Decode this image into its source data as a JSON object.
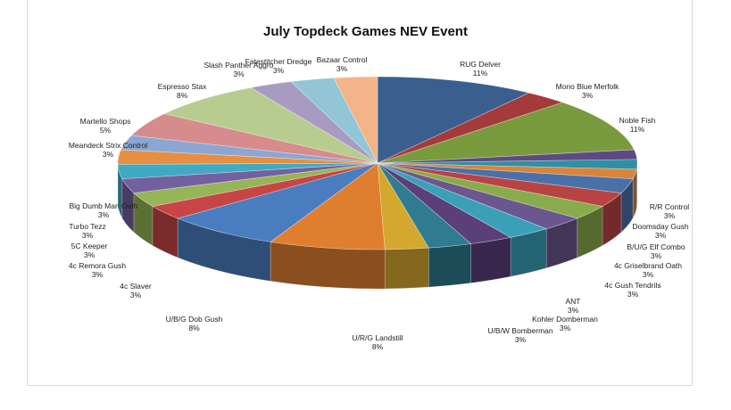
{
  "chart_data": {
    "type": "pie",
    "variant": "3d-exploded",
    "title": "July Topdeck Games NEV Event",
    "slices": [
      {
        "name": "RUG Delver",
        "percent_label": "11%",
        "value": 11,
        "color": "#3a5f8f"
      },
      {
        "name": "Mono Blue Merfolk",
        "percent_label": "3%",
        "value": 3,
        "color": "#a53a3a"
      },
      {
        "name": "Noble Fish",
        "percent_label": "11%",
        "value": 11,
        "color": "#7a9a3e"
      },
      {
        "name": "",
        "percent_label": "",
        "value": 2,
        "color": "#5e4a80"
      },
      {
        "name": "",
        "percent_label": "",
        "value": 2,
        "color": "#2f8fa5"
      },
      {
        "name": "",
        "percent_label": "",
        "value": 2,
        "color": "#d9843b"
      },
      {
        "name": "R/R Control",
        "percent_label": "3%",
        "value": 3,
        "color": "#4a70a8"
      },
      {
        "name": "Doomsday Gush",
        "percent_label": "3%",
        "value": 3,
        "color": "#b84343"
      },
      {
        "name": "B/U/G Elf Combo",
        "percent_label": "3%",
        "value": 3,
        "color": "#8aab4c"
      },
      {
        "name": "4c Griselbrand Oath",
        "percent_label": "3%",
        "value": 3,
        "color": "#6a5790"
      },
      {
        "name": "4c Gush Tendrils",
        "percent_label": "3%",
        "value": 3,
        "color": "#3aa0b8"
      },
      {
        "name": "ANT",
        "percent_label": "3%",
        "value": 3,
        "color": "#5a3f7a"
      },
      {
        "name": "Kohler Domberman",
        "percent_label": "3%",
        "value": 3,
        "color": "#2f7b8f"
      },
      {
        "name": "U/B/W Bomberman",
        "percent_label": "3%",
        "value": 3,
        "color": "#d4a82e"
      },
      {
        "name": "U/R/G Landstill",
        "percent_label": "8%",
        "value": 8,
        "color": "#e07e30"
      },
      {
        "name": "U/B/G Dob Gush",
        "percent_label": "8%",
        "value": 8,
        "color": "#4a7cc0"
      },
      {
        "name": "4c Slaver",
        "percent_label": "3%",
        "value": 3,
        "color": "#c84545"
      },
      {
        "name": "4c Remora Gush",
        "percent_label": "3%",
        "value": 3,
        "color": "#95b556"
      },
      {
        "name": "5C Keeper",
        "percent_label": "3%",
        "value": 3,
        "color": "#7360a0"
      },
      {
        "name": "Turbo Tezz",
        "percent_label": "3%",
        "value": 3,
        "color": "#40aac3"
      },
      {
        "name": "Big Dumb Man Oath",
        "percent_label": "3%",
        "value": 3,
        "color": "#e78e40"
      },
      {
        "name": "Meandeck Strix Control",
        "percent_label": "3%",
        "value": 3,
        "color": "#8ba6d3"
      },
      {
        "name": "Martello Shops",
        "percent_label": "5%",
        "value": 5,
        "color": "#d68c8c"
      },
      {
        "name": "Espresso Stax",
        "percent_label": "8%",
        "value": 8,
        "color": "#b9cc8f"
      },
      {
        "name": "Slash Panther Aggro",
        "percent_label": "3%",
        "value": 3,
        "color": "#a89bc2"
      },
      {
        "name": "Fatestitcher Dredge",
        "percent_label": "3%",
        "value": 3,
        "color": "#92c5d6"
      },
      {
        "name": "Bazaar Control",
        "percent_label": "3%",
        "value": 3,
        "color": "#f4b48a"
      }
    ]
  }
}
